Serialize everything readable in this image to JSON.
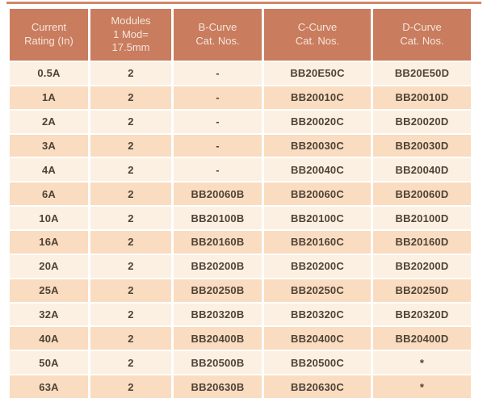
{
  "page": {
    "background": "#ffffff",
    "top_rule_color": "#d28767"
  },
  "table": {
    "header_bg": "#c97c5e",
    "header_text_color": "#f6e6dc",
    "row_light_bg": "#fbf0e1",
    "row_dark_bg": "#fadcc0",
    "body_text_color": "#4f4238",
    "divider_color": "#ffffff",
    "columns": [
      {
        "id": "current-rating",
        "label": "Current\nRating (In)"
      },
      {
        "id": "modules",
        "label": "Modules\n1 Mod=\n17.5mm"
      },
      {
        "id": "b-curve",
        "label": "B-Curve\nCat. Nos."
      },
      {
        "id": "c-curve",
        "label": "C-Curve\nCat. Nos."
      },
      {
        "id": "d-curve",
        "label": "D-Curve\nCat. Nos."
      }
    ],
    "rows": [
      [
        "0.5A",
        "2",
        "-",
        "BB20E50C",
        "BB20E50D"
      ],
      [
        "1A",
        "2",
        "-",
        "BB20010C",
        "BB20010D"
      ],
      [
        "2A",
        "2",
        "-",
        "BB20020C",
        "BB20020D"
      ],
      [
        "3A",
        "2",
        "-",
        "BB20030C",
        "BB20030D"
      ],
      [
        "4A",
        "2",
        "-",
        "BB20040C",
        "BB20040D"
      ],
      [
        "6A",
        "2",
        "BB20060B",
        "BB20060C",
        "BB20060D"
      ],
      [
        "10A",
        "2",
        "BB20100B",
        "BB20100C",
        "BB20100D"
      ],
      [
        "16A",
        "2",
        "BB20160B",
        "BB20160C",
        "BB20160D"
      ],
      [
        "20A",
        "2",
        "BB20200B",
        "BB20200C",
        "BB20200D"
      ],
      [
        "25A",
        "2",
        "BB20250B",
        "BB20250C",
        "BB20250D"
      ],
      [
        "32A",
        "2",
        "BB20320B",
        "BB20320C",
        "BB20320D"
      ],
      [
        "40A",
        "2",
        "BB20400B",
        "BB20400C",
        "BB20400D"
      ],
      [
        "50A",
        "2",
        "BB20500B",
        "BB20500C",
        "*"
      ],
      [
        "63A",
        "2",
        "BB20630B",
        "BB20630C",
        "*"
      ]
    ]
  }
}
